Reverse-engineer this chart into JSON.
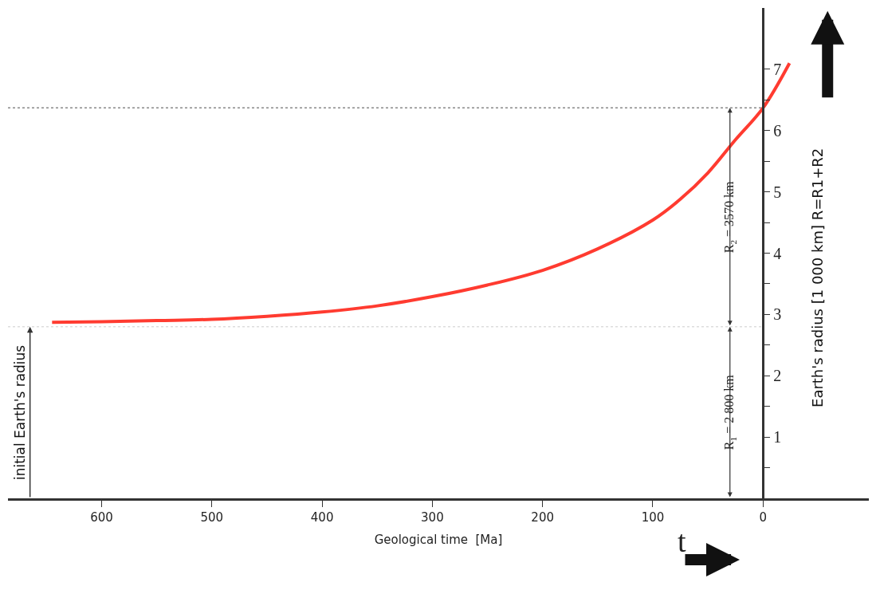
{
  "chart_data": {
    "type": "line",
    "xlabel": "Geological time  [Ma]",
    "ylabel": "Earth's radius [1 000 km] R=R1+R2",
    "x": [
      645,
      600,
      550,
      500,
      450,
      400,
      350,
      300,
      250,
      200,
      150,
      100,
      75,
      50,
      25,
      0,
      -24
    ],
    "series": [
      {
        "color": "#ff3b30",
        "values": [
          2.87,
          2.88,
          2.9,
          2.92,
          2.97,
          3.04,
          3.14,
          3.29,
          3.48,
          3.72,
          4.07,
          4.54,
          4.88,
          5.31,
          5.85,
          6.37,
          7.1
        ]
      }
    ],
    "xlim": [
      685,
      -96
    ],
    "ylim": [
      0,
      8
    ],
    "xticks": [
      600,
      500,
      400,
      300,
      200,
      100,
      0
    ],
    "yticks": [
      {
        "value": 0,
        "label": null
      },
      {
        "value": 0.5,
        "label": null
      },
      1,
      {
        "value": 1.5,
        "label": null
      },
      2,
      {
        "value": 2.5,
        "label": null
      },
      3,
      {
        "value": 3.5,
        "label": null
      },
      4,
      {
        "value": 4.5,
        "label": null
      },
      5,
      {
        "value": 5.5,
        "label": null
      },
      6,
      {
        "value": 6.5,
        "label": null
      },
      7
    ],
    "ref_lines": [
      {
        "axis": "y",
        "value": 6.37,
        "color": "#888888",
        "line_style": "dotted"
      },
      {
        "axis": "y",
        "value": 2.8,
        "color": "#dddddd",
        "line_style": "dotted"
      }
    ],
    "annotations": [
      "R$_{1}$ = 2 800 km",
      "R$_{2}$ = 3570 km",
      "initial Earth's radius",
      "t"
    ],
    "marker": "none",
    "line_style": "solid"
  }
}
